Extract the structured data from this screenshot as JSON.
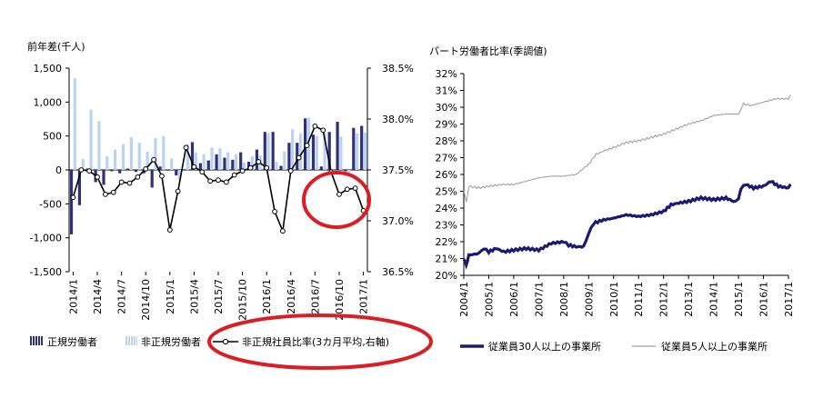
{
  "chart_data": [
    {
      "type": "bar",
      "title": "",
      "ylabel": "前年差(千人)",
      "y2label": "",
      "ylim": [
        -1500,
        1500
      ],
      "y2lim": [
        36.5,
        38.5
      ],
      "yticks": [
        "1,500",
        "1,000",
        "500",
        "0",
        "-500",
        "-1,000",
        "-1,500"
      ],
      "y2ticks": [
        "38.5%",
        "38.0%",
        "37.5%",
        "37.0%",
        "36.5%"
      ],
      "x": [
        "2014/1",
        "2014/2",
        "2014/3",
        "2014/4",
        "2014/5",
        "2014/6",
        "2014/7",
        "2014/8",
        "2014/9",
        "2014/10",
        "2014/11",
        "2014/12",
        "2015/1",
        "2015/2",
        "2015/3",
        "2015/4",
        "2015/5",
        "2015/6",
        "2015/7",
        "2015/8",
        "2015/9",
        "2015/10",
        "2015/11",
        "2015/12",
        "2016/1",
        "2016/2",
        "2016/3",
        "2016/4",
        "2016/5",
        "2016/6",
        "2016/7",
        "2016/8",
        "2016/9",
        "2016/10",
        "2016/11",
        "2016/12",
        "2017/1"
      ],
      "xticks": [
        "2014/1",
        "2014/4",
        "2014/7",
        "2014/10",
        "2015/1",
        "2015/4",
        "2015/7",
        "2015/10",
        "2016/1",
        "2016/4",
        "2016/7",
        "2016/10",
        "2017/1"
      ],
      "legend": [
        {
          "label": "正規労働者",
          "color": "#2f2f7a"
        },
        {
          "label": "非正規労働者",
          "color": "#b9d3f0"
        },
        {
          "label": "非正規社員比率(3カ月平均,右軸)",
          "color": "#000000"
        }
      ],
      "series": [
        {
          "name": "正規労働者",
          "type": "bar",
          "color": "#2f2f7a",
          "values": [
            -950,
            -520,
            20,
            -180,
            -220,
            -20,
            -50,
            20,
            -30,
            -50,
            -260,
            50,
            -10,
            -80,
            10,
            410,
            100,
            140,
            230,
            180,
            150,
            260,
            120,
            300,
            560,
            560,
            60,
            400,
            400,
            760,
            520,
            50,
            560,
            710,
            -20,
            620,
            650
          ]
        },
        {
          "name": "非正規労働者",
          "type": "bar",
          "color": "#b9d3f0",
          "values": [
            1350,
            160,
            890,
            720,
            200,
            300,
            380,
            480,
            400,
            270,
            470,
            500,
            170,
            -150,
            380,
            260,
            230,
            330,
            320,
            260,
            230,
            110,
            200,
            220,
            540,
            120,
            270,
            600,
            540,
            770,
            500,
            540,
            -70,
            490,
            -40,
            540,
            550
          ]
        },
        {
          "name": "非正規社員比率(3カ月平均,右軸)",
          "type": "line",
          "axis": "right",
          "color": "#000000",
          "values": [
            37.23,
            37.5,
            37.49,
            37.43,
            37.26,
            37.28,
            37.38,
            37.37,
            37.43,
            37.51,
            37.6,
            37.44,
            36.91,
            37.29,
            37.72,
            37.53,
            37.48,
            37.39,
            37.4,
            37.38,
            37.45,
            37.49,
            37.52,
            37.58,
            37.52,
            37.09,
            36.9,
            37.49,
            37.62,
            37.74,
            37.93,
            37.89,
            37.48,
            37.26,
            37.31,
            37.32,
            37.1
          ]
        }
      ]
    },
    {
      "type": "line",
      "title": "パート労働者比率(季調値)",
      "xlabel": "",
      "ylabel": "",
      "ylim": [
        20,
        32
      ],
      "yticks": [
        "32%",
        "31%",
        "30%",
        "29%",
        "28%",
        "27%",
        "26%",
        "25%",
        "24%",
        "23%",
        "22%",
        "21%",
        "20%"
      ],
      "xticks": [
        "2004/1",
        "2005/1",
        "2006/1",
        "2007/1",
        "2008/1",
        "2009/1",
        "2010/1",
        "2011/1",
        "2012/1",
        "2013/1",
        "2014/1",
        "2015/1",
        "2016/1",
        "2017/1"
      ],
      "x_range": [
        "2004/1",
        "2017/1"
      ],
      "series": [
        {
          "name": "従業員30人以上の事業所",
          "color": "#1a1a73",
          "points": [
            [
              2004.0,
              21.0
            ],
            [
              2004.1,
              20.6
            ],
            [
              2004.2,
              21.2
            ],
            [
              2004.6,
              21.3
            ],
            [
              2004.8,
              21.6
            ],
            [
              2005.0,
              21.4
            ],
            [
              2005.3,
              21.6
            ],
            [
              2005.6,
              21.4
            ],
            [
              2006.0,
              21.5
            ],
            [
              2006.5,
              21.6
            ],
            [
              2007.0,
              21.5
            ],
            [
              2007.5,
              21.9
            ],
            [
              2008.0,
              22.0
            ],
            [
              2008.2,
              21.8
            ],
            [
              2008.5,
              21.7
            ],
            [
              2008.8,
              21.7
            ],
            [
              2009.0,
              22.5
            ],
            [
              2009.2,
              23.1
            ],
            [
              2009.6,
              23.3
            ],
            [
              2010.0,
              23.4
            ],
            [
              2010.5,
              23.6
            ],
            [
              2011.0,
              23.5
            ],
            [
              2011.5,
              23.6
            ],
            [
              2012.0,
              23.8
            ],
            [
              2012.3,
              24.2
            ],
            [
              2012.6,
              24.3
            ],
            [
              2013.0,
              24.4
            ],
            [
              2013.5,
              24.6
            ],
            [
              2014.0,
              24.5
            ],
            [
              2014.5,
              24.6
            ],
            [
              2014.8,
              24.4
            ],
            [
              2015.0,
              24.5
            ],
            [
              2015.1,
              25.2
            ],
            [
              2015.3,
              25.4
            ],
            [
              2015.6,
              25.2
            ],
            [
              2016.0,
              25.3
            ],
            [
              2016.3,
              25.6
            ],
            [
              2016.6,
              25.3
            ],
            [
              2017.0,
              25.2
            ],
            [
              2017.1,
              25.4
            ]
          ]
        },
        {
          "name": "従業員5人以上の事業所",
          "color": "#9a9a9a",
          "points": [
            [
              2004.0,
              25.1
            ],
            [
              2004.1,
              24.3
            ],
            [
              2004.2,
              25.3
            ],
            [
              2004.6,
              25.2
            ],
            [
              2005.0,
              25.3
            ],
            [
              2005.5,
              25.4
            ],
            [
              2006.0,
              25.4
            ],
            [
              2006.5,
              25.6
            ],
            [
              2007.0,
              25.8
            ],
            [
              2007.5,
              25.9
            ],
            [
              2008.0,
              25.9
            ],
            [
              2008.5,
              26.0
            ],
            [
              2009.0,
              26.6
            ],
            [
              2009.3,
              27.2
            ],
            [
              2009.6,
              27.4
            ],
            [
              2010.0,
              27.6
            ],
            [
              2010.5,
              27.9
            ],
            [
              2011.0,
              28.0
            ],
            [
              2011.5,
              28.2
            ],
            [
              2012.0,
              28.4
            ],
            [
              2012.5,
              28.7
            ],
            [
              2013.0,
              29.0
            ],
            [
              2013.5,
              29.2
            ],
            [
              2014.0,
              29.5
            ],
            [
              2014.5,
              29.6
            ],
            [
              2015.0,
              29.6
            ],
            [
              2015.2,
              30.2
            ],
            [
              2015.5,
              30.1
            ],
            [
              2016.0,
              30.3
            ],
            [
              2016.5,
              30.5
            ],
            [
              2017.0,
              30.5
            ],
            [
              2017.1,
              30.7
            ]
          ]
        }
      ],
      "legend": [
        {
          "label": "従業員30人以上の事業所",
          "color": "#1a1a73"
        },
        {
          "label": "従業員5人以上の事業所",
          "color": "#9a9a9a"
        }
      ]
    }
  ]
}
